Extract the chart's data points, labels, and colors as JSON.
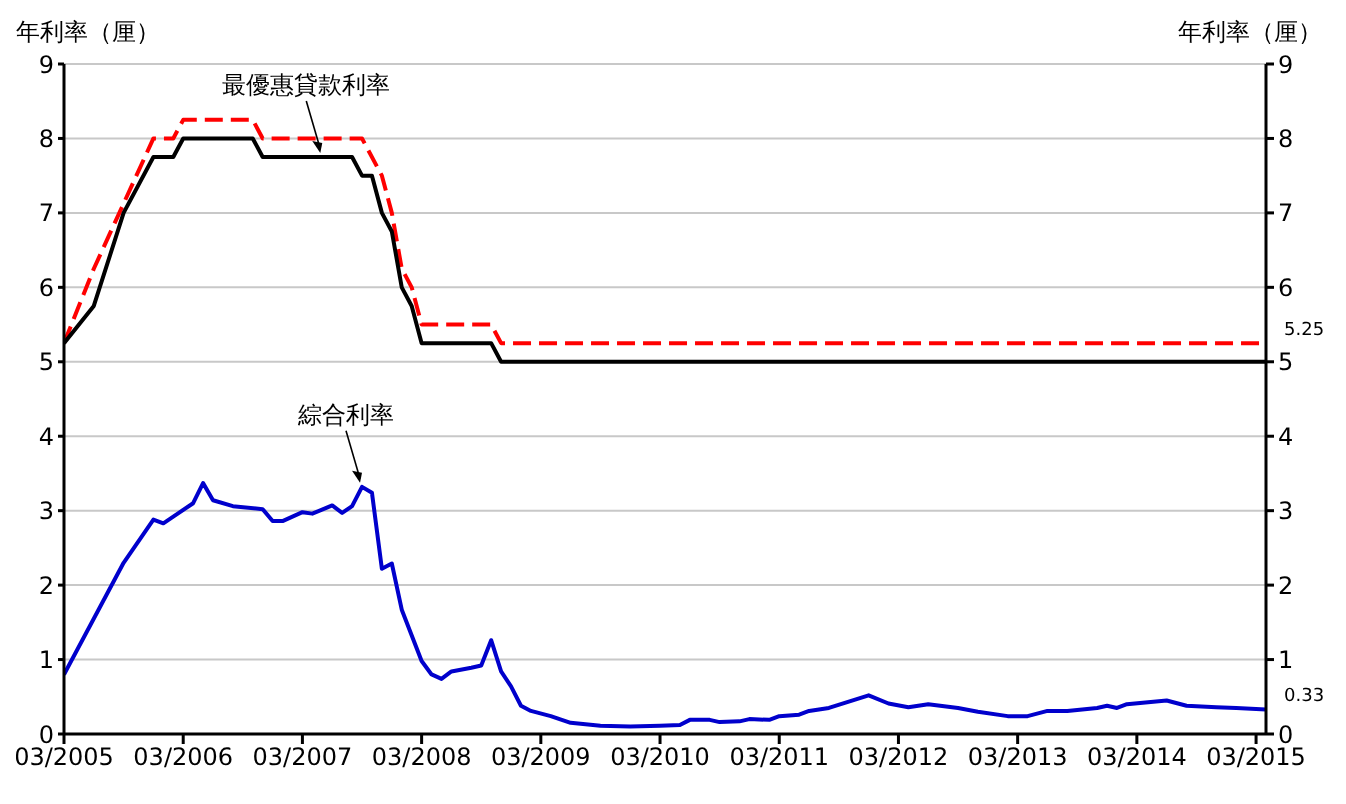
{
  "chart_data": {
    "type": "line",
    "ylabel": "年利率（厘）",
    "y2label": "年利率（厘）",
    "xlim": [
      "2005-03",
      "2015-04"
    ],
    "xticks": [
      {
        "value": "2005-03",
        "label": "03/2005"
      },
      {
        "value": "2006-03",
        "label": "03/2006"
      },
      {
        "value": "2007-03",
        "label": "03/2007"
      },
      {
        "value": "2008-03",
        "label": "03/2008"
      },
      {
        "value": "2009-03",
        "label": "03/2009"
      },
      {
        "value": "2010-03",
        "label": "03/2010"
      },
      {
        "value": "2011-03",
        "label": "03/2011"
      },
      {
        "value": "2012-03",
        "label": "03/2012"
      },
      {
        "value": "2013-03",
        "label": "03/2013"
      },
      {
        "value": "2014-03",
        "label": "03/2014"
      },
      {
        "value": "2015-03",
        "label": "03/2015"
      }
    ],
    "ylim": [
      0,
      9
    ],
    "yticks": [
      0,
      1,
      2,
      3,
      4,
      5,
      6,
      7,
      8,
      9
    ],
    "y2lim": [
      0,
      9
    ],
    "y2ticks": [
      0,
      1,
      2,
      3,
      4,
      5,
      6,
      7,
      8,
      9
    ],
    "grid": "y",
    "series": [
      {
        "color": "#ff0000",
        "line_style": "dashed",
        "x": [
          "2005-03",
          "2005-06",
          "2005-12",
          "2006-02",
          "2006-03",
          "2006-10",
          "2006-11",
          "2007-09",
          "2007-11",
          "2007-12",
          "2008-01",
          "2008-02",
          "2008-03",
          "2008-10",
          "2008-11",
          "2015-04"
        ],
        "values": [
          5.25,
          6.25,
          8.0,
          8.0,
          8.25,
          8.25,
          8.0,
          8.0,
          7.5,
          7.0,
          6.25,
          6.0,
          5.5,
          5.5,
          5.25,
          5.25
        ],
        "value_labels": [
          null,
          null,
          null,
          null,
          null,
          null,
          null,
          null,
          null,
          null,
          null,
          null,
          null,
          null,
          null,
          "5.25"
        ]
      },
      {
        "color": "#000000",
        "line_style": "solid",
        "x": [
          "2005-03",
          "2005-06",
          "2005-09",
          "2005-12",
          "2006-02",
          "2006-03",
          "2006-10",
          "2006-11",
          "2007-08",
          "2007-09",
          "2007-10",
          "2007-11",
          "2007-12",
          "2008-01",
          "2008-02",
          "2008-03",
          "2008-10",
          "2008-11",
          "2015-04"
        ],
        "values": [
          5.25,
          5.75,
          7.0,
          7.75,
          7.75,
          8.0,
          8.0,
          7.75,
          7.75,
          7.5,
          7.5,
          7.0,
          6.75,
          6.0,
          5.75,
          5.25,
          5.25,
          5.0,
          5.0
        ]
      },
      {
        "color": "#0000cc",
        "line_style": "solid",
        "x": [
          "2005-03",
          "2005-09",
          "2005-12",
          "2006-01",
          "2006-02",
          "2006-04",
          "2006-05",
          "2006-06",
          "2006-08",
          "2006-11",
          "2006-12",
          "2007-01",
          "2007-03",
          "2007-04",
          "2007-06",
          "2007-07",
          "2007-08",
          "2007-09",
          "2007-10",
          "2007-11",
          "2007-12",
          "2008-01",
          "2008-03",
          "2008-04",
          "2008-05",
          "2008-06",
          "2008-08",
          "2008-09",
          "2008-10",
          "2008-11",
          "2008-12",
          "2009-01",
          "2009-02",
          "2009-04",
          "2009-06",
          "2009-09",
          "2009-12",
          "2010-03",
          "2010-05",
          "2010-06",
          "2010-08",
          "2010-09",
          "2010-11",
          "2010-12",
          "2011-02",
          "2011-03",
          "2011-05",
          "2011-06",
          "2011-08",
          "2011-12",
          "2012-02",
          "2012-04",
          "2012-06",
          "2012-09",
          "2012-11",
          "2013-02",
          "2013-04",
          "2013-06",
          "2013-08",
          "2013-11",
          "2013-12",
          "2014-01",
          "2014-02",
          "2014-06",
          "2014-08",
          "2014-11",
          "2015-01",
          "2015-04"
        ],
        "values": [
          0.8,
          2.3,
          2.88,
          2.83,
          2.92,
          3.1,
          3.37,
          3.14,
          3.06,
          3.02,
          2.86,
          2.86,
          2.98,
          2.96,
          3.07,
          2.97,
          3.06,
          3.32,
          3.24,
          2.22,
          2.29,
          1.67,
          0.98,
          0.8,
          0.74,
          0.84,
          0.89,
          0.92,
          1.26,
          0.84,
          0.64,
          0.38,
          0.31,
          0.24,
          0.15,
          0.11,
          0.1,
          0.11,
          0.12,
          0.19,
          0.19,
          0.16,
          0.17,
          0.2,
          0.19,
          0.24,
          0.26,
          0.31,
          0.35,
          0.52,
          0.41,
          0.36,
          0.4,
          0.35,
          0.3,
          0.24,
          0.24,
          0.31,
          0.31,
          0.35,
          0.38,
          0.35,
          0.4,
          0.45,
          0.38,
          0.36,
          0.35,
          0.33
        ],
        "value_labels": [
          null,
          null,
          null,
          null,
          null,
          null,
          null,
          null,
          null,
          null,
          null,
          null,
          null,
          null,
          null,
          null,
          null,
          null,
          null,
          null,
          null,
          null,
          null,
          null,
          null,
          null,
          null,
          null,
          null,
          null,
          null,
          null,
          null,
          null,
          null,
          null,
          null,
          null,
          null,
          null,
          null,
          null,
          null,
          null,
          null,
          null,
          null,
          null,
          null,
          null,
          null,
          null,
          null,
          null,
          null,
          null,
          null,
          null,
          null,
          null,
          null,
          null,
          null,
          null,
          null,
          null,
          null,
          "0.33"
        ]
      }
    ],
    "annotations": [
      {
        "text": "最優惠貸款利率",
        "x": "2007-05",
        "y": 7.75
      },
      {
        "text": "綜合利率",
        "x": "2007-09",
        "y": 3.32
      }
    ]
  }
}
